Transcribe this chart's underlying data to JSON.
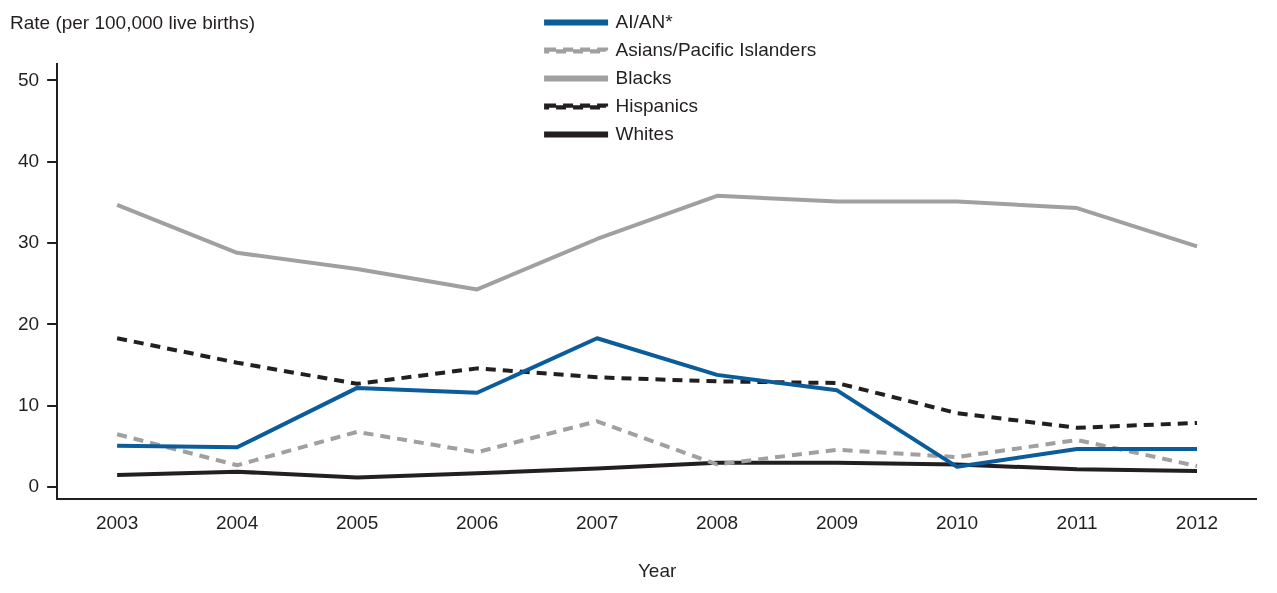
{
  "chart_data": {
    "type": "line",
    "xlabel": "Year",
    "ylabel": "Rate (per 100,000 live births)",
    "categories": [
      "2003",
      "2004",
      "2005",
      "2006",
      "2007",
      "2008",
      "2009",
      "2010",
      "2011",
      "2012"
    ],
    "series": [
      {
        "name": "AI/AN*",
        "color": "#0b5c9a",
        "line_style": "solid",
        "values": [
          5.1,
          4.9,
          12.2,
          11.6,
          18.3,
          13.8,
          11.9,
          2.5,
          4.7,
          4.7
        ]
      },
      {
        "name": "Asians/Pacific Islanders",
        "color": "#a0a0a0",
        "line_style": "dashed",
        "values": [
          6.5,
          2.7,
          6.8,
          4.3,
          8.1,
          2.8,
          4.6,
          3.7,
          5.8,
          2.6
        ]
      },
      {
        "name": "Blacks",
        "color": "#a0a0a0",
        "line_style": "solid",
        "values": [
          34.7,
          28.8,
          26.8,
          24.3,
          30.5,
          35.8,
          35.1,
          35.1,
          34.3,
          29.6
        ]
      },
      {
        "name": "Hispanics",
        "color": "#231f20",
        "line_style": "dashed",
        "values": [
          18.3,
          15.3,
          12.7,
          14.6,
          13.5,
          13.0,
          12.8,
          9.1,
          7.3,
          7.9
        ]
      },
      {
        "name": "Whites",
        "color": "#231f20",
        "line_style": "solid",
        "values": [
          1.5,
          1.9,
          1.2,
          1.7,
          2.3,
          3.0,
          3.0,
          2.8,
          2.2,
          2.0
        ]
      }
    ],
    "ylim": [
      -1.5,
      52
    ],
    "yticks": [
      0,
      10,
      20,
      30,
      40,
      50
    ],
    "grid": false,
    "legend": "top",
    "marker": "none"
  }
}
